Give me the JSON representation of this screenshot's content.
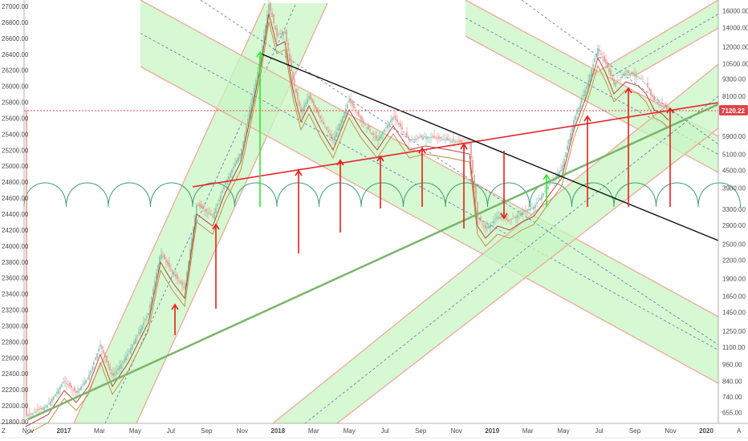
{
  "chart_data": {
    "type": "candlestick-analysis",
    "title": "",
    "price_label": {
      "value": "7120.22",
      "color": "#e0454b"
    },
    "left_axis": {
      "ticks": [
        "27000.00",
        "26800.00",
        "26600.00",
        "26400.00",
        "26200.00",
        "26000.00",
        "25800.00",
        "25600.00",
        "25400.00",
        "25200.00",
        "25000.00",
        "24800.00",
        "24600.00",
        "24400.00",
        "24200.00",
        "24000.00",
        "23800.00",
        "23600.00",
        "23400.00",
        "23200.00",
        "23000.00",
        "22800.00",
        "22600.00",
        "22400.00",
        "22200.00",
        "22000.00",
        "21800.00"
      ],
      "range": [
        21800,
        27000
      ]
    },
    "right_axis": {
      "scale": "log",
      "ticks": [
        "16000.00",
        "14000.00",
        "12000.00",
        "10500.00",
        "9300.00",
        "8100.00",
        "7100.00",
        "5900.00",
        "5100.00",
        "4500.00",
        "3900.00",
        "3300.00",
        "2900.00",
        "2500.00",
        "2200.00",
        "1900.00",
        "1650.00",
        "1450.00",
        "1250.00",
        "1100.00",
        "960.00",
        "840.00",
        "740.00",
        "655.00"
      ],
      "range": [
        600,
        17000
      ]
    },
    "x_axis": {
      "labels": [
        "Nov",
        "2017",
        "Mar",
        "May",
        "Jul",
        "Sep",
        "Nov",
        "2018",
        "Mar",
        "May",
        "Jul",
        "Sep",
        "Nov",
        "2019",
        "Mar",
        "May",
        "Jul",
        "Sep",
        "Nov",
        "2020"
      ],
      "year_labels": [
        "2017",
        "2018",
        "2019",
        "2020"
      ]
    },
    "colors": {
      "channel_fill": "#c8f5c3",
      "channel_edge": "#f0a89a",
      "trendline_black": "#000000",
      "trendline_red": "#e8242d",
      "trendline_green": "#7ab56a",
      "arrow_red": "#e81e1e",
      "arrow_green": "#2ee82e",
      "price_line": "#e0454b",
      "ma_line": "#b5443a",
      "cycle_arcs": "#3c9e73",
      "candle_up": "#7ab8a3",
      "candle_down": "#e48b86"
    }
  }
}
